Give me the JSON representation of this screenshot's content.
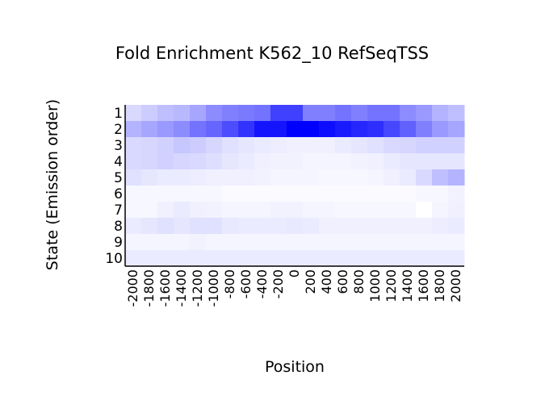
{
  "chart_data": {
    "type": "heatmap",
    "title": "Fold Enrichment K562_10 RefSeqTSS",
    "xlabel": "Position",
    "ylabel": "State (Emission order)",
    "x": [
      "-2000",
      "-1800",
      "-1600",
      "-1400",
      "-1200",
      "-1000",
      "-800",
      "-600",
      "-400",
      "-200",
      "0",
      "200",
      "400",
      "600",
      "800",
      "1000",
      "1200",
      "1400",
      "1600",
      "1800",
      "2000"
    ],
    "y": [
      "1",
      "2",
      "3",
      "4",
      "5",
      "6",
      "7",
      "8",
      "9",
      "10"
    ],
    "grid": false,
    "color_low": "#ffffff",
    "color_high": "#0000ff",
    "values": [
      [
        0.15,
        0.2,
        0.25,
        0.28,
        0.35,
        0.45,
        0.5,
        0.52,
        0.55,
        0.75,
        0.75,
        0.5,
        0.5,
        0.55,
        0.5,
        0.55,
        0.55,
        0.45,
        0.4,
        0.3,
        0.25
      ],
      [
        0.3,
        0.35,
        0.4,
        0.45,
        0.55,
        0.6,
        0.7,
        0.8,
        0.92,
        0.92,
        1.0,
        1.0,
        0.95,
        0.9,
        0.85,
        0.82,
        0.72,
        0.62,
        0.5,
        0.4,
        0.35
      ],
      [
        0.15,
        0.16,
        0.18,
        0.22,
        0.2,
        0.16,
        0.12,
        0.1,
        0.08,
        0.07,
        0.06,
        0.06,
        0.06,
        0.08,
        0.1,
        0.12,
        0.15,
        0.16,
        0.18,
        0.18,
        0.18
      ],
      [
        0.15,
        0.16,
        0.18,
        0.16,
        0.15,
        0.13,
        0.1,
        0.08,
        0.06,
        0.05,
        0.05,
        0.04,
        0.04,
        0.04,
        0.05,
        0.06,
        0.08,
        0.1,
        0.1,
        0.1,
        0.1
      ],
      [
        0.12,
        0.1,
        0.08,
        0.08,
        0.07,
        0.06,
        0.06,
        0.06,
        0.05,
        0.04,
        0.04,
        0.04,
        0.03,
        0.03,
        0.03,
        0.04,
        0.06,
        0.08,
        0.15,
        0.25,
        0.3
      ],
      [
        0.03,
        0.03,
        0.03,
        0.03,
        0.03,
        0.03,
        0.02,
        0.02,
        0.02,
        0.02,
        0.02,
        0.02,
        0.02,
        0.02,
        0.02,
        0.02,
        0.02,
        0.02,
        0.03,
        0.03,
        0.05
      ],
      [
        0.03,
        0.03,
        0.06,
        0.08,
        0.06,
        0.05,
        0.04,
        0.04,
        0.04,
        0.05,
        0.05,
        0.04,
        0.04,
        0.03,
        0.03,
        0.03,
        0.03,
        0.03,
        0.0,
        0.04,
        0.06
      ],
      [
        0.08,
        0.1,
        0.12,
        0.1,
        0.12,
        0.12,
        0.09,
        0.08,
        0.08,
        0.08,
        0.09,
        0.08,
        0.06,
        0.06,
        0.06,
        0.06,
        0.06,
        0.06,
        0.06,
        0.07,
        0.08
      ],
      [
        0.04,
        0.04,
        0.04,
        0.04,
        0.05,
        0.04,
        0.04,
        0.04,
        0.04,
        0.04,
        0.04,
        0.04,
        0.04,
        0.04,
        0.04,
        0.04,
        0.04,
        0.04,
        0.04,
        0.04,
        0.04
      ],
      [
        0.08,
        0.08,
        0.08,
        0.08,
        0.08,
        0.08,
        0.08,
        0.08,
        0.08,
        0.08,
        0.08,
        0.08,
        0.08,
        0.08,
        0.08,
        0.08,
        0.08,
        0.08,
        0.08,
        0.08,
        0.08
      ]
    ]
  }
}
